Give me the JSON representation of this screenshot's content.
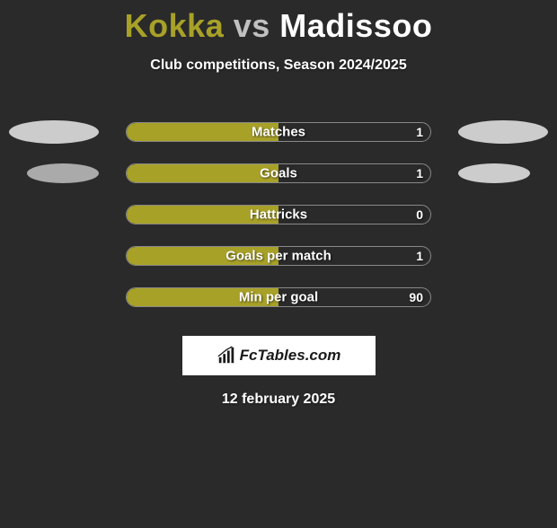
{
  "header": {
    "player1_name": "Kokka",
    "vs_text": "vs",
    "player2_name": "Madissoo",
    "player1_color": "#a8a128",
    "player2_color": "#ffffff",
    "vs_color": "#c0c0c0"
  },
  "subtitle": "Club competitions, Season 2024/2025",
  "chart": {
    "type": "horizontal-bar-comparison",
    "background_color": "#2a2a2a",
    "bar_outer_width": 340,
    "bar_outer_height": 22,
    "bar_border_color": "#888888",
    "bar_border_radius": 11,
    "fill_color_player1": "#a8a128",
    "label_color": "#ffffff",
    "label_fontsize": 15,
    "value_fontsize": 14,
    "stats": [
      {
        "label": "Matches",
        "right_value": "1",
        "fill_percent": 50,
        "show_left_ellipse": true,
        "show_right_ellipse": true,
        "ellipse_variant": 1
      },
      {
        "label": "Goals",
        "right_value": "1",
        "fill_percent": 50,
        "show_left_ellipse": true,
        "show_right_ellipse": true,
        "ellipse_variant": 2
      },
      {
        "label": "Hattricks",
        "right_value": "0",
        "fill_percent": 50,
        "show_left_ellipse": false,
        "show_right_ellipse": false,
        "ellipse_variant": 0
      },
      {
        "label": "Goals per match",
        "right_value": "1",
        "fill_percent": 50,
        "show_left_ellipse": false,
        "show_right_ellipse": false,
        "ellipse_variant": 0
      },
      {
        "label": "Min per goal",
        "right_value": "90",
        "fill_percent": 50,
        "show_left_ellipse": false,
        "show_right_ellipse": false,
        "ellipse_variant": 0
      }
    ]
  },
  "brand": {
    "text": "FcTables.com",
    "banner_bg": "#ffffff",
    "text_color": "#1a1a1a",
    "icon_name": "bar-chart-icon"
  },
  "date_text": "12 february 2025",
  "ellipse_colors": {
    "variant1_left": "#cccccc",
    "variant1_right": "#cccccc",
    "variant2_left": "#aaaaaa",
    "variant2_right": "#cccccc"
  }
}
